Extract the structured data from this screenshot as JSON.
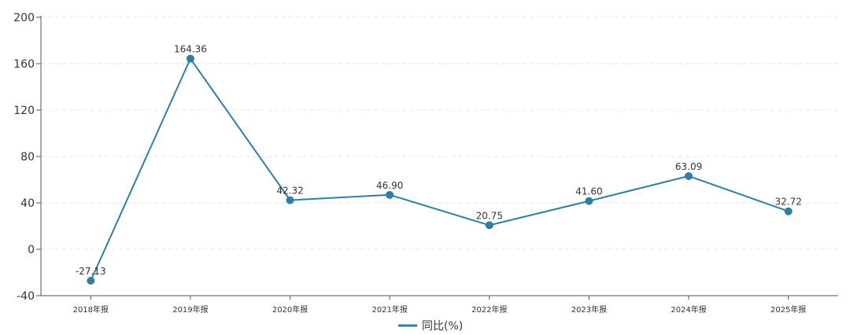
{
  "chart_data": {
    "type": "line",
    "categories": [
      "2018年报",
      "2019年报",
      "2020年报",
      "2021年报",
      "2022年报",
      "2023年报",
      "2024年报",
      "2025年报"
    ],
    "series": [
      {
        "name": "同比(%)",
        "values": [
          -27.13,
          164.36,
          42.32,
          46.9,
          20.75,
          41.6,
          63.09,
          32.72
        ],
        "labels": [
          "-27.13",
          "164.36",
          "42.32",
          "46.90",
          "20.75",
          "41.60",
          "63.09",
          "32.72"
        ],
        "color": "#2e7fa3"
      }
    ],
    "yticks": [
      "200",
      "160",
      "120",
      "80",
      "40",
      "0",
      "-40"
    ],
    "ylim": [
      -40,
      200
    ],
    "grid": true,
    "grid_color": "#e6e6e6",
    "axis_color": "#555555",
    "legend_position": "bottom-center"
  }
}
